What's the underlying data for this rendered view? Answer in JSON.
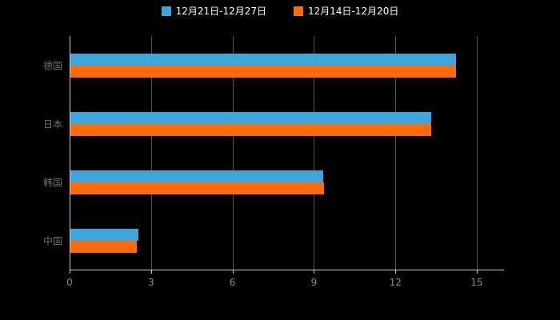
{
  "chart_data": {
    "type": "bar",
    "orientation": "horizontal",
    "title": "",
    "xlabel": "",
    "ylabel": "",
    "categories": [
      "德国",
      "日本",
      "韩国",
      "中国"
    ],
    "series": [
      {
        "name": "12月21日-12月27日",
        "color": "#3BA5DC",
        "values": [
          14.2,
          13.3,
          9.3,
          2.5
        ]
      },
      {
        "name": "12月14日-12月20日",
        "color": "#FF6A0D",
        "values": [
          14.2,
          13.3,
          9.35,
          2.45
        ]
      }
    ],
    "xlim": [
      0,
      16
    ],
    "xticks": [
      0,
      3,
      6,
      9,
      12,
      15
    ],
    "grid": true,
    "legend_position": "top"
  },
  "colors": {
    "background": "#000000",
    "legend_text": "#ffffff",
    "axis_line": "#cccccc",
    "gridline": "#555555",
    "tick_label": "#8a8a8a",
    "category_label": "#707070",
    "series_blue": "#3BA5DC",
    "series_orange": "#FF6A0D"
  }
}
